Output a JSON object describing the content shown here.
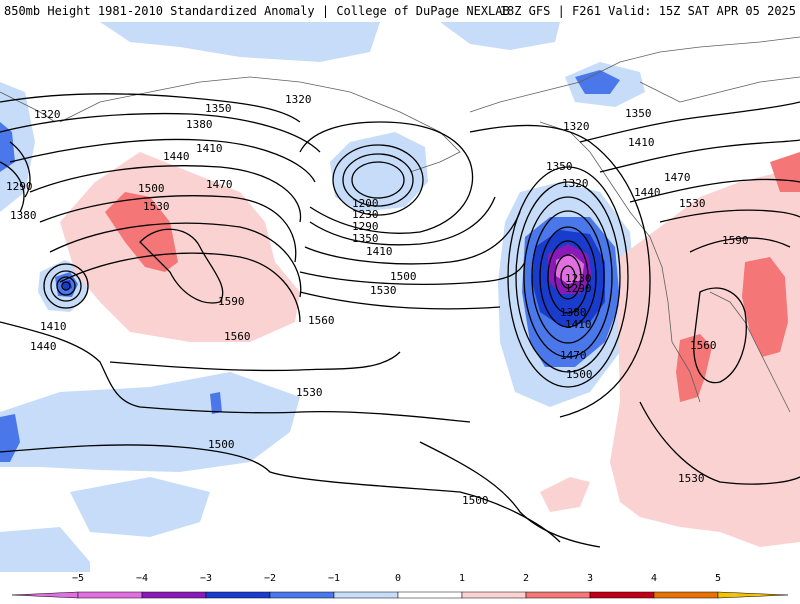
{
  "header": {
    "title": "850mb Height 1981-2010 Standardized Anomaly | College of DuPage NEXLAB",
    "run_info": "18Z GFS | F261 Valid: 15Z SAT APR 05 2025"
  },
  "colors": {
    "neg5": "#e070e0",
    "neg4": "#8a1ab8",
    "neg3": "#1a3ccc",
    "neg2": "#4a78ea",
    "neg1": "#c6dcf8",
    "pos1": "#fbd2d2",
    "pos2": "#f47676",
    "pos3": "#c00018",
    "pos4": "#e8720a",
    "pos5": "#f4c20a",
    "contour": "#000000",
    "coast": "#606060"
  },
  "map": {
    "contour_labels": [
      "1320",
      "1350",
      "1380",
      "1410",
      "1440",
      "1290",
      "1380",
      "1410",
      "1440",
      "1470",
      "1500",
      "1530",
      "1590",
      "1560",
      "1560",
      "1530",
      "1500",
      "1500",
      "1200",
      "1230",
      "1290",
      "1350",
      "1410",
      "1500",
      "1530",
      "1350",
      "1320",
      "1230",
      "1290",
      "1380",
      "1410",
      "1470",
      "1500",
      "1320",
      "1350",
      "1410",
      "1440",
      "1470",
      "1530",
      "1590",
      "1560",
      "1530",
      "1320"
    ]
  },
  "colorbar": {
    "labels": [
      "−5",
      "−4",
      "−3",
      "−2",
      "−1",
      "0",
      "1",
      "2",
      "3",
      "4",
      "5"
    ]
  }
}
